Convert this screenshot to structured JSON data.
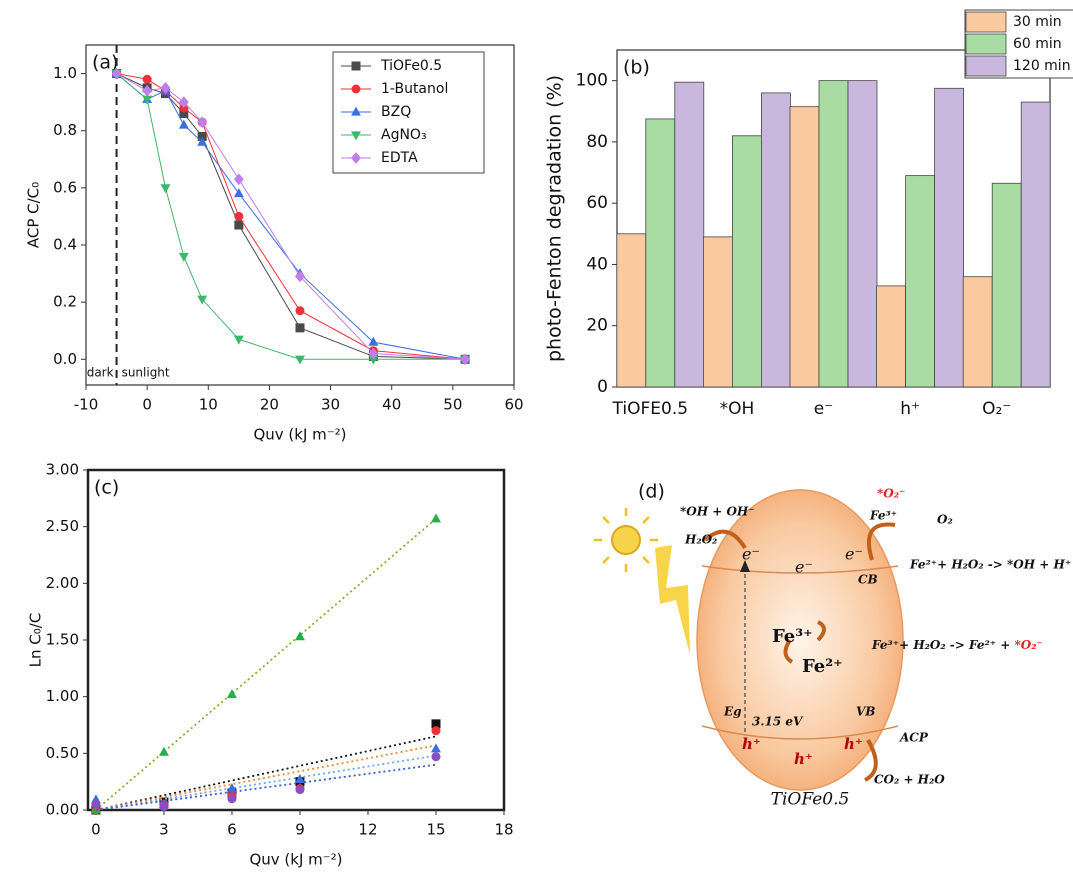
{
  "chart_data": [
    {
      "type": "line",
      "panel_label": "(a)",
      "xlabel": "Quv (kJ m⁻²)",
      "ylabel": "ACP C/C₀",
      "x": [
        -5,
        0,
        3,
        6,
        9,
        15,
        25,
        37,
        52
      ],
      "divider_x": -5,
      "divider_labels": [
        "dark",
        "sunlight"
      ],
      "series": [
        {
          "name": "TiOFe0.5",
          "color": "#4a4a4a",
          "marker": "square",
          "values": [
            1.0,
            0.95,
            0.93,
            0.86,
            0.78,
            0.47,
            0.11,
            0.01,
            0.0
          ]
        },
        {
          "name": "1-Butanol",
          "color": "#f0303a",
          "marker": "circle",
          "values": [
            1.0,
            0.98,
            0.94,
            0.88,
            0.83,
            0.5,
            0.17,
            0.03,
            0.0
          ]
        },
        {
          "name": "BZQ",
          "color": "#3a6fe0",
          "marker": "triangle-up",
          "values": [
            1.0,
            0.91,
            0.94,
            0.82,
            0.76,
            0.58,
            0.3,
            0.06,
            0.0
          ]
        },
        {
          "name": "AgNO₃",
          "color": "#3cb86a",
          "marker": "triangle-down",
          "values": [
            1.0,
            0.91,
            0.6,
            0.36,
            0.21,
            0.07,
            0.0,
            0.0,
            0.0
          ]
        },
        {
          "name": "EDTA",
          "color": "#c07ee8",
          "marker": "diamond",
          "values": [
            1.0,
            0.94,
            0.95,
            0.9,
            0.83,
            0.63,
            0.29,
            0.02,
            0.0
          ]
        }
      ],
      "xlim": [
        -10,
        60
      ],
      "xticks": [
        -10,
        0,
        10,
        20,
        30,
        40,
        50,
        60
      ],
      "ylim": [
        -0.09,
        1.1
      ],
      "yticks": [
        {
          "value": 0,
          "label": "0.0"
        },
        0.2,
        0.4,
        0.6,
        0.8,
        {
          "value": 1,
          "label": "1.0"
        }
      ],
      "legend": "top-right"
    },
    {
      "type": "bar",
      "panel_label": "(b)",
      "ylabel": "photo-Fenton degradation (%)",
      "categories": [
        "TiOFE0.5",
        "*OH",
        "e⁻",
        "h⁺",
        "O₂⁻"
      ],
      "series": [
        {
          "name": "30  min",
          "color": "#fbc9a0",
          "values": [
            50,
            49,
            91.5,
            33,
            36
          ]
        },
        {
          "name": "60 min",
          "color": "#a8dca2",
          "values": [
            87.5,
            82,
            100,
            69,
            66.5
          ]
        },
        {
          "name": "120 min",
          "color": "#c9b7de",
          "values": [
            99.5,
            96,
            100,
            97.5,
            93
          ]
        }
      ],
      "ylim": [
        0,
        110
      ],
      "yticks": [
        0,
        20,
        40,
        60,
        80,
        100
      ],
      "legend": "top-right"
    },
    {
      "type": "scatter",
      "panel_label": "(c)",
      "xlabel": "Quv (kJ m⁻²)",
      "ylabel": "Ln C₀/C",
      "x": [
        0,
        3,
        6,
        9,
        15
      ],
      "fit_x": [
        0,
        15
      ],
      "series": [
        {
          "name": "TiOFe0.5",
          "color": "#111111",
          "marker": "square",
          "fit_color": "#111111",
          "values": [
            0,
            0.07,
            0.15,
            0.25,
            0.76
          ],
          "fit": [
            0,
            0.65
          ]
        },
        {
          "name": "1-Butanol",
          "color": "#f0303a",
          "marker": "circle",
          "fit_color": "#f08a3a",
          "values": [
            0,
            0.05,
            0.13,
            0.19,
            0.7
          ],
          "fit": [
            0,
            0.57
          ]
        },
        {
          "name": "BZQ",
          "color": "#3a6fe0",
          "marker": "triangle-up",
          "fit_color": "#6fa8f0",
          "values": [
            0.09,
            0.05,
            0.19,
            0.27,
            0.54
          ],
          "fit": [
            0,
            0.48
          ]
        },
        {
          "name": "AgNO₃",
          "color": "#22b04a",
          "marker": "triangle-up",
          "fit_color": "#7fb030",
          "values": [
            0,
            0.51,
            1.02,
            1.53,
            2.57
          ],
          "fit": [
            0,
            2.57
          ]
        },
        {
          "name": "EDTA",
          "color": "#8a4ec0",
          "marker": "circle",
          "fit_color": "#3a5ad0",
          "values": [
            0.05,
            0.03,
            0.1,
            0.18,
            0.47
          ],
          "fit": [
            0,
            0.4
          ]
        }
      ],
      "xlim": [
        -0.35,
        18
      ],
      "xticks": [
        0,
        3,
        6,
        9,
        12,
        15,
        18
      ],
      "ylim": [
        0,
        3
      ],
      "yticks": [
        {
          "value": 0,
          "label": "0.00"
        },
        {
          "value": 0.5,
          "label": "0.50"
        },
        {
          "value": 1,
          "label": "1.00"
        },
        {
          "value": 1.5,
          "label": "1.50"
        },
        {
          "value": 2,
          "label": "2.00"
        },
        {
          "value": 2.5,
          "label": "2.50"
        },
        {
          "value": 3,
          "label": "3.00"
        }
      ]
    }
  ],
  "diagram": {
    "panel_label": "(d)",
    "oh": "*OH + OH⁻",
    "h2o2": "H₂O₂",
    "e1": "e⁻",
    "e2": "e⁻",
    "e3": "e⁻",
    "o2rad": "*O₂⁻",
    "fe3top": "Fe³⁺",
    "o2": "O₂",
    "cb": "CB",
    "reaction1": "Fe²⁺+ H₂O₂ -> *OH + H⁺",
    "fe3": "Fe³⁺",
    "fe2": "Fe²⁺",
    "reaction2a": "Fe³⁺+ H₂O₂ -> Fe²⁺ + ",
    "reaction2b": "*O₂⁻",
    "eg": "Eg",
    "gap": "3.15 eV",
    "vb": "VB",
    "h1": "h⁺",
    "h2": "h⁺",
    "h3": "h⁺",
    "acp": "ACP",
    "products": "CO₂ + H₂O",
    "name": "TiOFe0.5"
  }
}
